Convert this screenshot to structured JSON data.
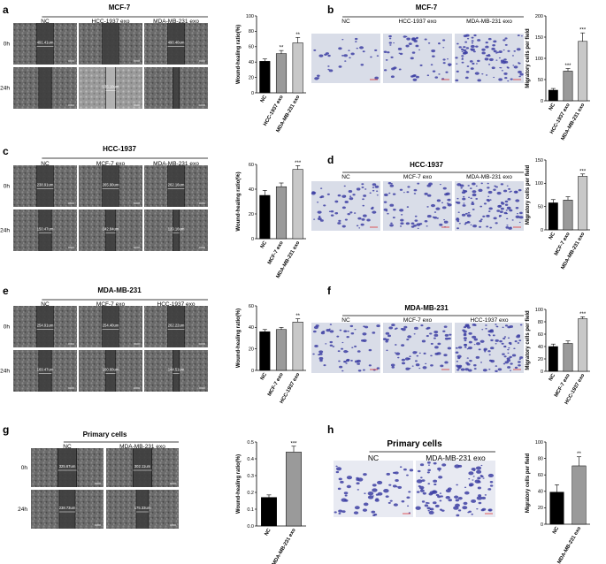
{
  "figure": {
    "panels": [
      {
        "letter": "a",
        "title": "MCF-7",
        "type": "wound",
        "columns": [
          "NC",
          "HCC-1937 exo",
          "MDA-MB-231 exo"
        ],
        "rows": [
          "0h",
          "24h"
        ],
        "measure_labels": [
          [
            "491.41um",
            "",
            "490.40um"
          ],
          [
            "",
            "135.10um",
            ""
          ]
        ],
        "chart": {
          "type": "bar",
          "ylabel": "Wound-healing ratio(%)",
          "ylim": [
            0,
            100
          ],
          "ticks": [
            "0",
            "20",
            "40",
            "60",
            "80",
            "100"
          ],
          "categories": [
            "NC",
            "HCC-1937 exo",
            "MDA-MB-231 exo"
          ],
          "values": [
            41,
            51,
            65
          ],
          "errors": [
            3,
            4,
            7
          ],
          "significance": [
            "",
            "**",
            "**"
          ]
        }
      },
      {
        "letter": "b",
        "title": "MCF-7",
        "type": "migration",
        "columns": [
          "NC",
          "HCC-1937 exo",
          "MDA-MB-231 exo"
        ],
        "rows": [],
        "chart": {
          "type": "bar",
          "ylabel": "Migratory cells per field",
          "ylim": [
            0,
            200
          ],
          "ticks": [
            "0",
            "50",
            "100",
            "150",
            "200"
          ],
          "categories": [
            "NC",
            "HCC-1937 exo",
            "MDA-MB-231 exo"
          ],
          "values": [
            25,
            70,
            140
          ],
          "errors": [
            4,
            6,
            20
          ],
          "significance": [
            "",
            "***",
            "***"
          ]
        }
      },
      {
        "letter": "c",
        "title": "HCC-1937",
        "type": "wound",
        "columns": [
          "NC",
          "MCF-7 exo",
          "MDA-MB-231 exo"
        ],
        "rows": [
          "0h",
          "24h"
        ],
        "measure_labels": [
          [
            "238.91um",
            "265.90um",
            "262.16um"
          ],
          [
            "150.47um",
            "142.84um",
            "129.16um"
          ]
        ],
        "chart": {
          "type": "bar",
          "ylabel": "Wound-healing ratio(%)",
          "ylim": [
            0,
            60
          ],
          "ticks": [
            "0",
            "20",
            "40",
            "60"
          ],
          "categories": [
            "NC",
            "MCF-7 exo",
            "MDA-MB-231 exo"
          ],
          "values": [
            35,
            42,
            56
          ],
          "errors": [
            4,
            3,
            3
          ],
          "significance": [
            "",
            "",
            "***"
          ]
        }
      },
      {
        "letter": "d",
        "title": "HCC-1937",
        "type": "migration",
        "columns": [
          "NC",
          "MCF-7 exo",
          "MDA-MB-231 exo"
        ],
        "rows": [],
        "chart": {
          "type": "bar",
          "ylabel": "Migratory cells per field",
          "ylim": [
            0,
            150
          ],
          "ticks": [
            "0",
            "50",
            "100",
            "150"
          ],
          "categories": [
            "NC",
            "MCF-7 exo",
            "MDA-MB-231 exo"
          ],
          "values": [
            58,
            64,
            115
          ],
          "errors": [
            7,
            7,
            5
          ],
          "significance": [
            "",
            "",
            "***"
          ]
        }
      },
      {
        "letter": "e",
        "title": "MDA-MB-231",
        "type": "wound",
        "columns": [
          "NC",
          "MCF-7 exo",
          "HCC-1937 exo"
        ],
        "rows": [
          "0h",
          "24h"
        ],
        "measure_labels": [
          [
            "254.91um",
            "254.40um",
            "262.22um"
          ],
          [
            "169.47um",
            "160.60um",
            "144.51um"
          ]
        ],
        "chart": {
          "type": "bar",
          "ylabel": "Wound-healing ratio(%)",
          "ylim": [
            0,
            60
          ],
          "ticks": [
            "0",
            "20",
            "40",
            "60"
          ],
          "categories": [
            "NC",
            "MCF-7 exo",
            "HCC-1937 exo"
          ],
          "values": [
            36,
            38,
            45
          ],
          "errors": [
            2,
            2,
            3
          ],
          "significance": [
            "",
            "",
            "**"
          ]
        }
      },
      {
        "letter": "f",
        "title": "MDA-MB-231",
        "type": "migration",
        "columns": [
          "NC",
          "MCF-7 exo",
          "HCC-1937 exo"
        ],
        "rows": [],
        "chart": {
          "type": "bar",
          "ylabel": "Migratory cells per field",
          "ylim": [
            0,
            100
          ],
          "ticks": [
            "0",
            "20",
            "40",
            "60",
            "80",
            "100"
          ],
          "categories": [
            "NC",
            "MCF-7 exo",
            "HCC-1937 exo"
          ],
          "values": [
            40,
            45,
            85
          ],
          "errors": [
            4,
            4,
            3
          ],
          "significance": [
            "",
            "",
            "***"
          ]
        }
      },
      {
        "letter": "g",
        "title": "Primary cells",
        "type": "wound",
        "columns": [
          "NC",
          "MDA-MB-231 exo"
        ],
        "rows": [
          "0h",
          "24h"
        ],
        "measure_labels": [
          [
            "325.67um",
            "302.11um"
          ],
          [
            "238.73um",
            "175.33um"
          ]
        ],
        "chart": {
          "type": "bar",
          "ylabel": "Wound-healing ratio(%)",
          "ylim": [
            0,
            0.5
          ],
          "ticks": [
            "0.0",
            "0.1",
            "0.2",
            "0.3",
            "0.4",
            "0.5"
          ],
          "categories": [
            "NC",
            "MDA-MB-231 exo"
          ],
          "values": [
            0.17,
            0.44
          ],
          "errors": [
            0.015,
            0.035
          ],
          "significance": [
            "",
            "***"
          ]
        }
      },
      {
        "letter": "h",
        "title": "Primary cells",
        "type": "migration",
        "columns": [
          "NC",
          "MDA-MB-231 exo"
        ],
        "rows": [],
        "chart": {
          "type": "bar",
          "ylabel": "Migratory cells per field",
          "ylim": [
            0,
            100
          ],
          "ticks": [
            "0",
            "20",
            "40",
            "60",
            "80",
            "100"
          ],
          "categories": [
            "NC",
            "MDA-MB-231 exo"
          ],
          "values": [
            39,
            71
          ],
          "errors": [
            9,
            11
          ],
          "significance": [
            "",
            "**"
          ]
        }
      }
    ]
  },
  "colors": {
    "bar_fills": [
      "#000000",
      "#9a9a9a",
      "#c8c8c8"
    ],
    "wound_bg": "#5e5e5e",
    "wound_gap": "#404040",
    "migration_bg": "#d9dde8",
    "migration_cell": "#3d3fa3"
  }
}
